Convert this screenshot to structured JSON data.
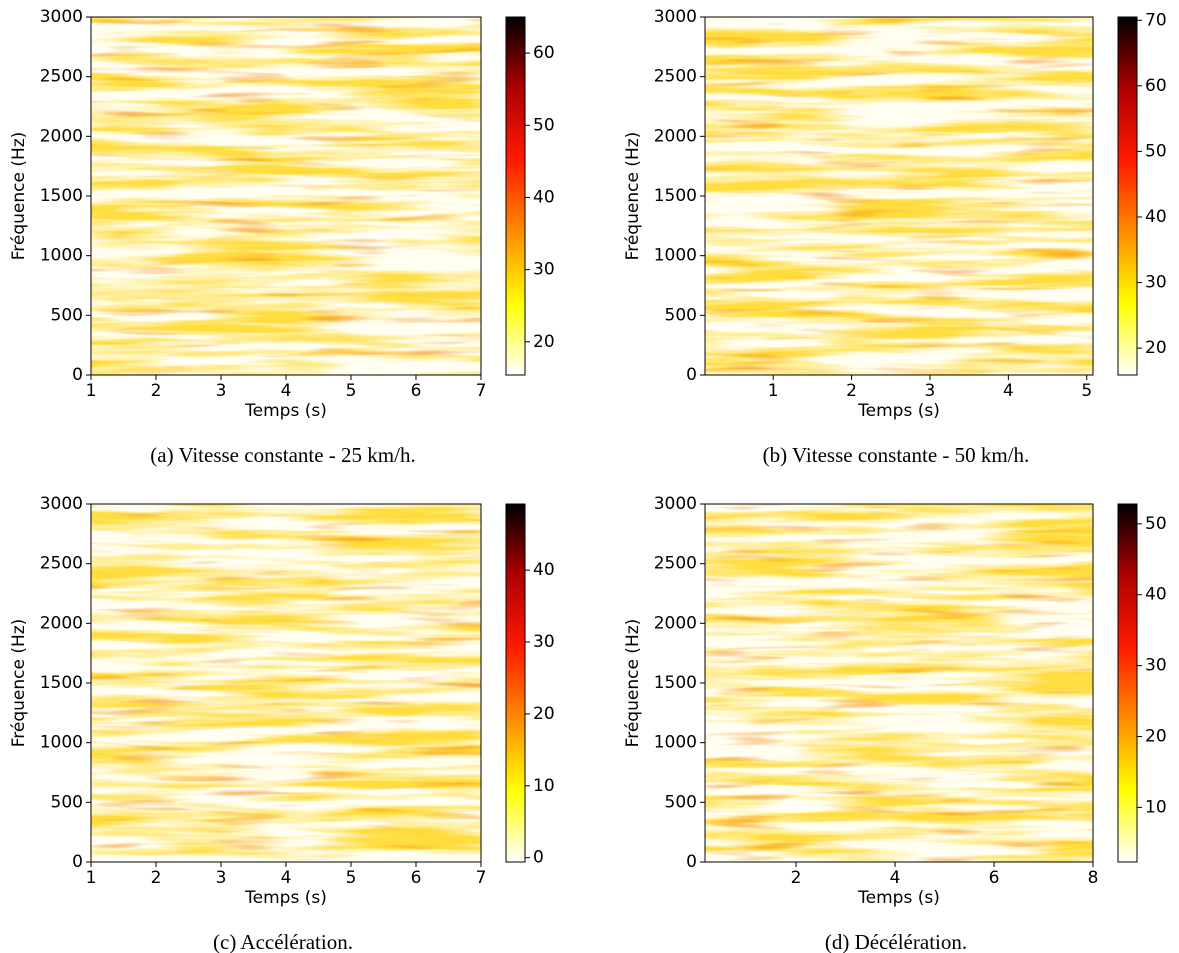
{
  "chart_data": [
    {
      "type": "heatmap",
      "caption": "(a) Vitesse constante - 25 km/h.",
      "xlabel": "Temps (s)",
      "ylabel": "Fréquence (Hz)",
      "xlim": [
        1,
        7
      ],
      "xticks": [
        1,
        2,
        3,
        4,
        5,
        6,
        7
      ],
      "ylim": [
        0,
        3000
      ],
      "yticks": [
        0,
        500,
        1000,
        1500,
        2000,
        2500,
        3000
      ],
      "colormap": "hot_r",
      "colorbar": {
        "lim": [
          15.4,
          65
        ],
        "ticks": [
          20,
          30,
          40,
          50,
          60
        ]
      }
    },
    {
      "type": "heatmap",
      "caption": "(b) Vitesse constante - 50 km/h.",
      "xlabel": "Temps (s)",
      "ylabel": "Fréquence (Hz)",
      "xlim": [
        0.13,
        5.08
      ],
      "xticks": [
        1,
        2,
        3,
        4,
        5
      ],
      "ylim": [
        0,
        3000
      ],
      "yticks": [
        0,
        500,
        1000,
        1500,
        2000,
        2500,
        3000
      ],
      "colormap": "hot_r",
      "colorbar": {
        "lim": [
          15.9,
          70.5
        ],
        "ticks": [
          20,
          30,
          40,
          50,
          60,
          70
        ]
      }
    },
    {
      "type": "heatmap",
      "caption": "(c) Accélération.",
      "xlabel": "Temps (s)",
      "ylabel": "Fréquence (Hz)",
      "xlim": [
        1,
        7
      ],
      "xticks": [
        1,
        2,
        3,
        4,
        5,
        6,
        7
      ],
      "ylim": [
        0,
        3000
      ],
      "yticks": [
        0,
        500,
        1000,
        1500,
        2000,
        2500,
        3000
      ],
      "colormap": "hot_r",
      "colorbar": {
        "lim": [
          -0.6,
          49.2
        ],
        "ticks": [
          0,
          10,
          20,
          30,
          40
        ]
      }
    },
    {
      "type": "heatmap",
      "caption": "(d) Décélération.",
      "xlabel": "Temps (s)",
      "ylabel": "Fréquence (Hz)",
      "xlim": [
        0.16,
        8
      ],
      "xticks": [
        2,
        4,
        6,
        8
      ],
      "ylim": [
        0,
        3000
      ],
      "yticks": [
        0,
        500,
        1000,
        1500,
        2000,
        2500,
        3000
      ],
      "colormap": "hot_r",
      "colorbar": {
        "lim": [
          2.3,
          52.8
        ],
        "ticks": [
          10,
          20,
          30,
          40,
          50
        ]
      }
    }
  ]
}
